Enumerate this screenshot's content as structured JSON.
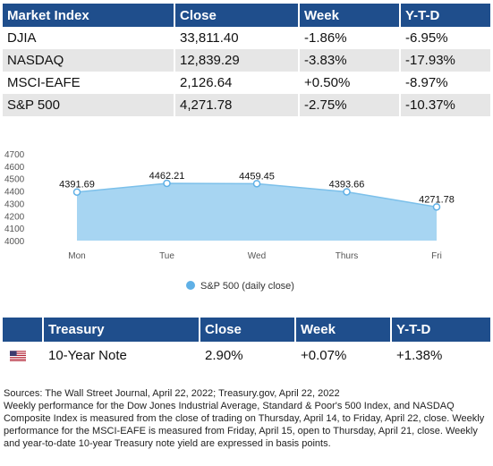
{
  "market_table": {
    "headers": [
      "Market Index",
      "Close",
      "Week",
      "Y-T-D"
    ],
    "rows": [
      [
        "DJIA",
        "33,811.40",
        "-1.86%",
        "-6.95%"
      ],
      [
        "NASDAQ",
        "12,839.29",
        "-3.83%",
        "-17.93%"
      ],
      [
        "MSCI-EAFE",
        "2,126.64",
        "+0.50%",
        "-8.97%"
      ],
      [
        "S&P 500",
        "4,271.78",
        "-2.75%",
        "-10.37%"
      ]
    ]
  },
  "chart_data": {
    "type": "area",
    "categories": [
      "Mon",
      "Tue",
      "Wed",
      "Thurs",
      "Fri"
    ],
    "series": [
      {
        "name": "S&P 500 (daily close)",
        "values": [
          4391.69,
          4462.21,
          4459.45,
          4393.66,
          4271.78
        ]
      }
    ],
    "data_labels": [
      "4391.69",
      "4462.21",
      "4459.45",
      "4393.66",
      "4271.78"
    ],
    "y_ticks": [
      4000,
      4100,
      4200,
      4300,
      4400,
      4500,
      4600,
      4700
    ],
    "ylim": [
      4000,
      4700
    ],
    "legend": "bottom",
    "grid": false,
    "colors": {
      "fill": "#a7d5f2",
      "line": "#7cc0ea",
      "marker": "#5fb0e6"
    }
  },
  "treasury_table": {
    "headers": [
      "Treasury",
      "Close",
      "Week",
      "Y-T-D"
    ],
    "rows": [
      {
        "flag_icon": "us-flag-icon",
        "name": "10-Year Note",
        "close": "2.90%",
        "week": "+0.07%",
        "ytd": "+1.38%"
      }
    ]
  },
  "sources": "Sources: The Wall Street Journal, April 22, 2022; Treasury.gov, April 22, 2022",
  "footnote": "Weekly performance for the Dow Jones Industrial Average, Standard & Poor's 500 Index, and NASDAQ Composite Index is measured from the close of trading on Thursday, April 14, to Friday, April 22, close. Weekly performance for the MSCI-EAFE is measured from Friday, April 15, open to Thursday, April 21, close. Weekly and year-to-date 10-year Treasury note yield are expressed in basis points.",
  "colors": {
    "header_bg": "#1f4e8c",
    "row_alt": "#e6e6e6"
  }
}
